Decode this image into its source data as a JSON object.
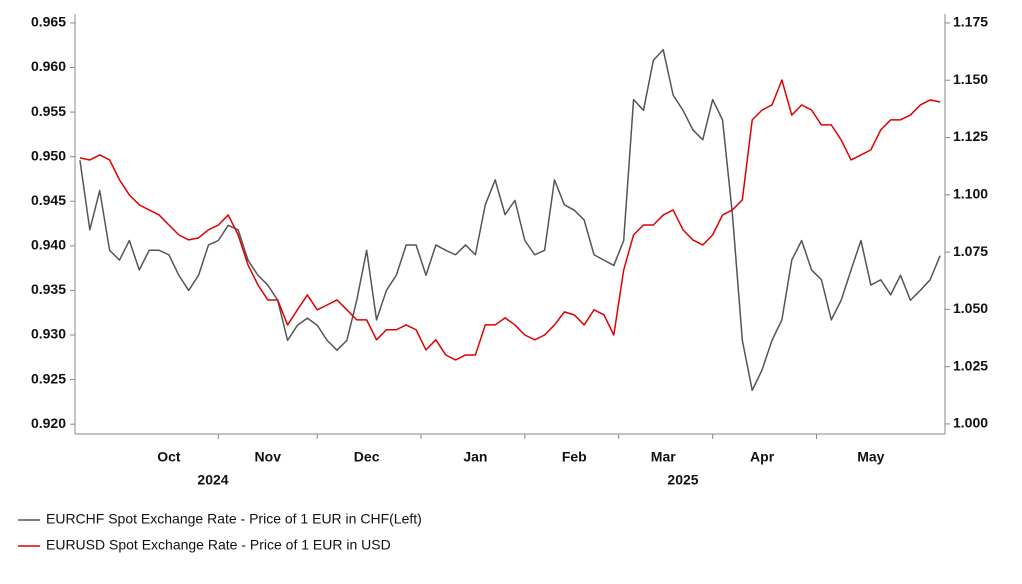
{
  "chart_data": {
    "type": "line",
    "categories": [
      null,
      null,
      null,
      null,
      null,
      null,
      null,
      null,
      null,
      "Oct",
      null,
      null,
      null,
      null,
      null,
      null,
      null,
      null,
      null,
      "Nov",
      null,
      null,
      null,
      null,
      null,
      null,
      null,
      null,
      null,
      "Dec",
      null,
      null,
      null,
      null,
      null,
      null,
      null,
      null,
      null,
      null,
      "Jan",
      null,
      null,
      null,
      null,
      null,
      null,
      null,
      null,
      null,
      "Feb",
      null,
      null,
      null,
      null,
      null,
      null,
      null,
      null,
      "Mar",
      null,
      null,
      null,
      null,
      null,
      null,
      null,
      null,
      null,
      "Apr",
      null,
      null,
      null,
      null,
      null,
      null,
      null,
      null,
      null,
      null,
      "May",
      null,
      null,
      null,
      null,
      null,
      null,
      null
    ],
    "x_group_labels": [
      "2024",
      "2025"
    ],
    "series": [
      {
        "name": "EURCHF Spot Exchange Rate - Price of 1 EUR in CHF(Left)",
        "color": "#555555",
        "axis": "y",
        "values": [
          0.9496,
          0.9418,
          0.9462,
          0.9395,
          0.9384,
          0.9406,
          0.9373,
          0.9395,
          0.9395,
          0.939,
          0.9367,
          0.935,
          0.9367,
          0.9401,
          0.9406,
          0.9423,
          0.9418,
          0.9384,
          0.9367,
          0.9356,
          0.9339,
          0.9294,
          0.9311,
          0.9319,
          0.9311,
          0.9294,
          0.9283,
          0.9294,
          0.9339,
          0.9395,
          0.9317,
          0.935,
          0.9367,
          0.9401,
          0.9401,
          0.9367,
          0.9401,
          0.9395,
          0.939,
          0.9401,
          0.939,
          0.9446,
          0.9474,
          0.9435,
          0.9451,
          0.9406,
          0.939,
          0.9395,
          0.9474,
          0.9446,
          0.944,
          0.9429,
          0.939,
          0.9384,
          0.9378,
          0.9406,
          0.9564,
          0.9552,
          0.9608,
          0.962,
          0.9569,
          0.9552,
          0.953,
          0.9519,
          0.9564,
          0.9541,
          0.9435,
          0.9294,
          0.9238,
          0.9261,
          0.9294,
          0.9317,
          0.9384,
          0.9406,
          0.9373,
          0.9362,
          0.9317,
          0.9339,
          0.9373,
          0.9406,
          0.9356,
          0.9362,
          0.9345,
          0.9367,
          0.9339,
          0.935,
          0.9362,
          0.9389
        ]
      },
      {
        "name": "EURUSD Spot Exchange Rate - Price of 1 EUR in USD",
        "color": "#e00000",
        "axis": "y2",
        "values": [
          1.1161,
          1.1152,
          1.1174,
          1.1152,
          1.1065,
          1.0999,
          1.0956,
          1.0934,
          1.0912,
          1.0868,
          1.0825,
          1.0803,
          1.0812,
          1.0847,
          1.0868,
          1.0912,
          1.0825,
          1.0694,
          1.0607,
          1.0541,
          1.0541,
          1.0432,
          1.0498,
          1.0563,
          1.0498,
          1.0519,
          1.0541,
          1.0498,
          1.0454,
          1.0454,
          1.0367,
          1.0411,
          1.0411,
          1.0432,
          1.0411,
          1.0323,
          1.0367,
          1.0301,
          1.0279,
          1.0301,
          1.0301,
          1.0432,
          1.0432,
          1.0463,
          1.0432,
          1.0388,
          1.0367,
          1.0388,
          1.0432,
          1.0489,
          1.0476,
          1.0432,
          1.0498,
          1.0476,
          1.0388,
          1.0672,
          1.0825,
          1.0868,
          1.0868,
          1.0912,
          1.0934,
          1.0847,
          1.0803,
          1.0781,
          1.0825,
          1.0912,
          1.0934,
          1.0978,
          1.1327,
          1.137,
          1.1392,
          1.1501,
          1.1348,
          1.1392,
          1.137,
          1.1305,
          1.1305,
          1.1239,
          1.1152,
          1.1174,
          1.1196,
          1.1283,
          1.1327,
          1.1327,
          1.1348,
          1.1392,
          1.1414,
          1.1405
        ]
      }
    ],
    "ylim": [
      0.9189,
      0.966
    ],
    "yticks": [
      {
        "value": 0.92,
        "label": "0.920"
      },
      0.925,
      {
        "value": 0.93,
        "label": "0.930"
      },
      0.935,
      {
        "value": 0.94,
        "label": "0.940"
      },
      0.945,
      {
        "value": 0.95,
        "label": "0.950"
      },
      0.955,
      {
        "value": 0.96,
        "label": "0.960"
      },
      0.965
    ],
    "y2lim": [
      0.9956,
      1.1789
    ],
    "y2ticks": [
      {
        "value": 1.0,
        "label": "1.000"
      },
      1.025,
      {
        "value": 1.05,
        "label": "1.050"
      },
      1.075,
      {
        "value": 1.1,
        "label": "1.100"
      },
      1.125,
      {
        "value": 1.15,
        "label": "1.150"
      },
      1.175
    ],
    "grid": false
  }
}
